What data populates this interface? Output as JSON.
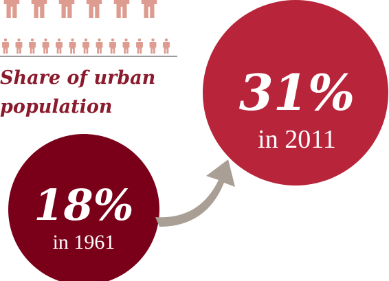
{
  "title": {
    "lines": [
      "Share of urban",
      "population"
    ]
  },
  "items": [
    {
      "value": "18%",
      "label": "in 1961"
    },
    {
      "value": "31%",
      "label": "in 2011"
    }
  ]
}
